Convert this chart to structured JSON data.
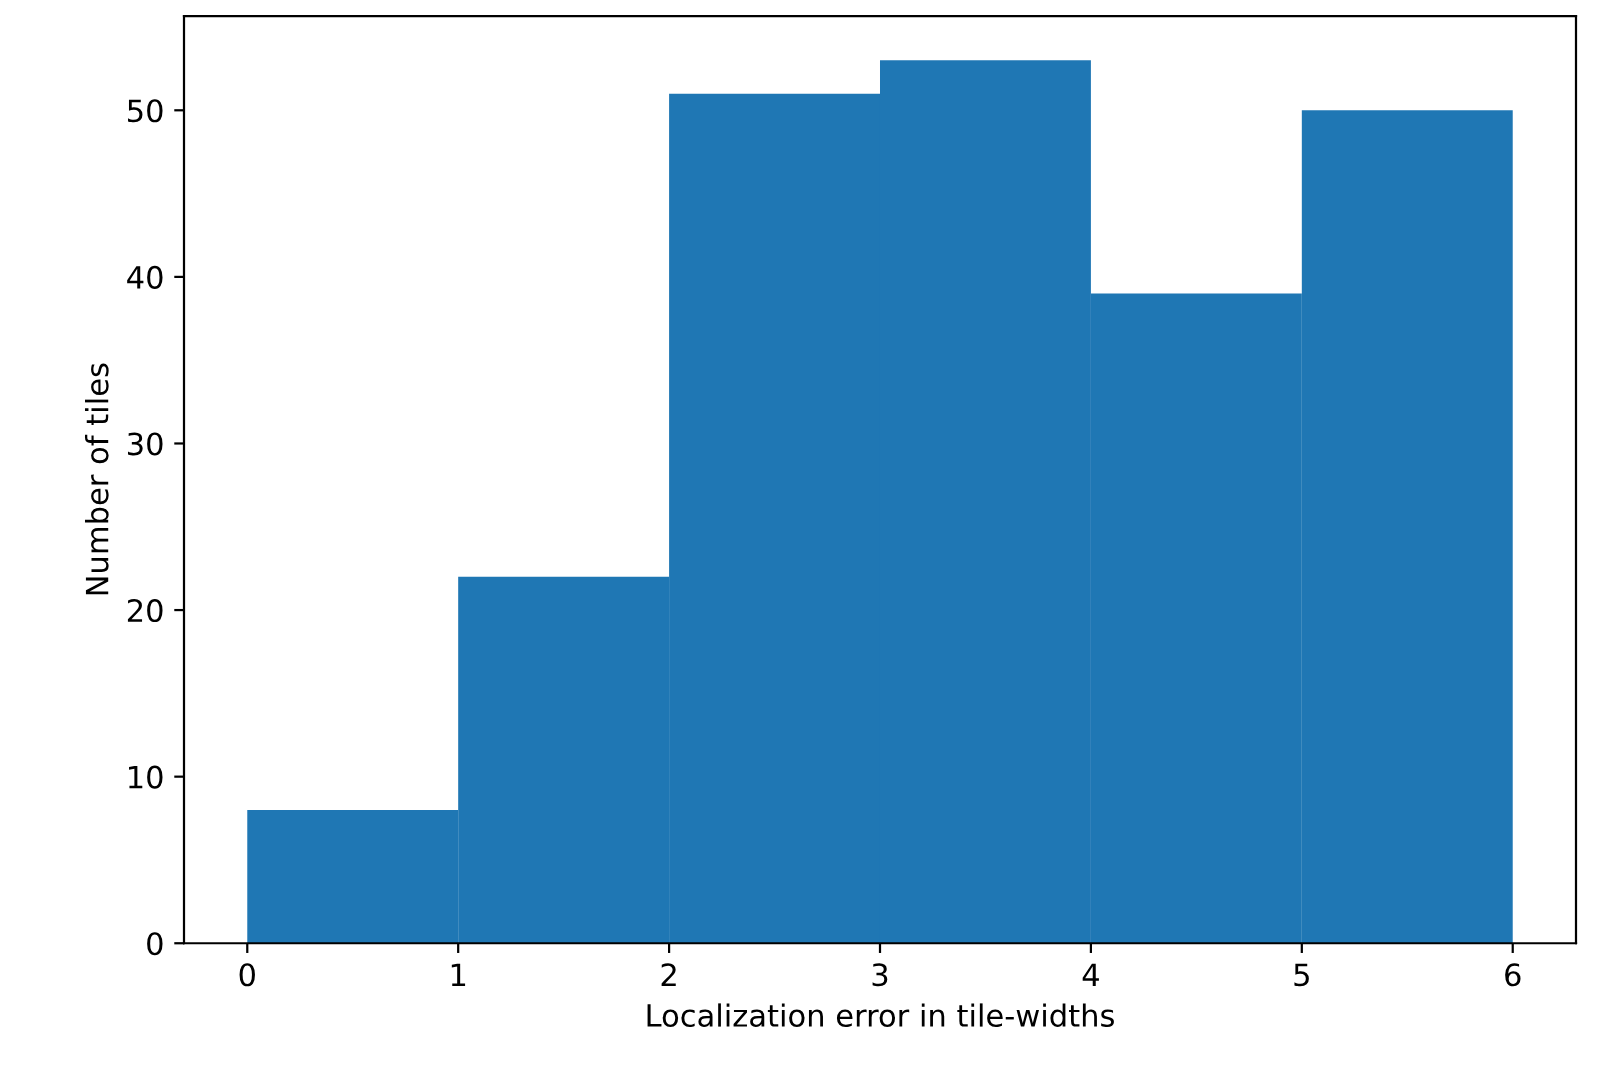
{
  "chart_data": {
    "type": "histogram",
    "xlabel": "Localization error in tile-widths",
    "ylabel": "Number of tiles",
    "bins": [
      0,
      1,
      2,
      3,
      4,
      5,
      6
    ],
    "values": [
      8,
      22,
      51,
      53,
      39,
      50
    ],
    "color": "#1f77b4",
    "xlim": [
      -0.3,
      6.3
    ],
    "xticks": [
      0,
      1,
      2,
      3,
      4,
      5,
      6
    ],
    "ylim": [
      0,
      55.65
    ],
    "yticks": [
      0,
      10,
      20,
      30,
      40,
      50
    ],
    "grid": false
  }
}
